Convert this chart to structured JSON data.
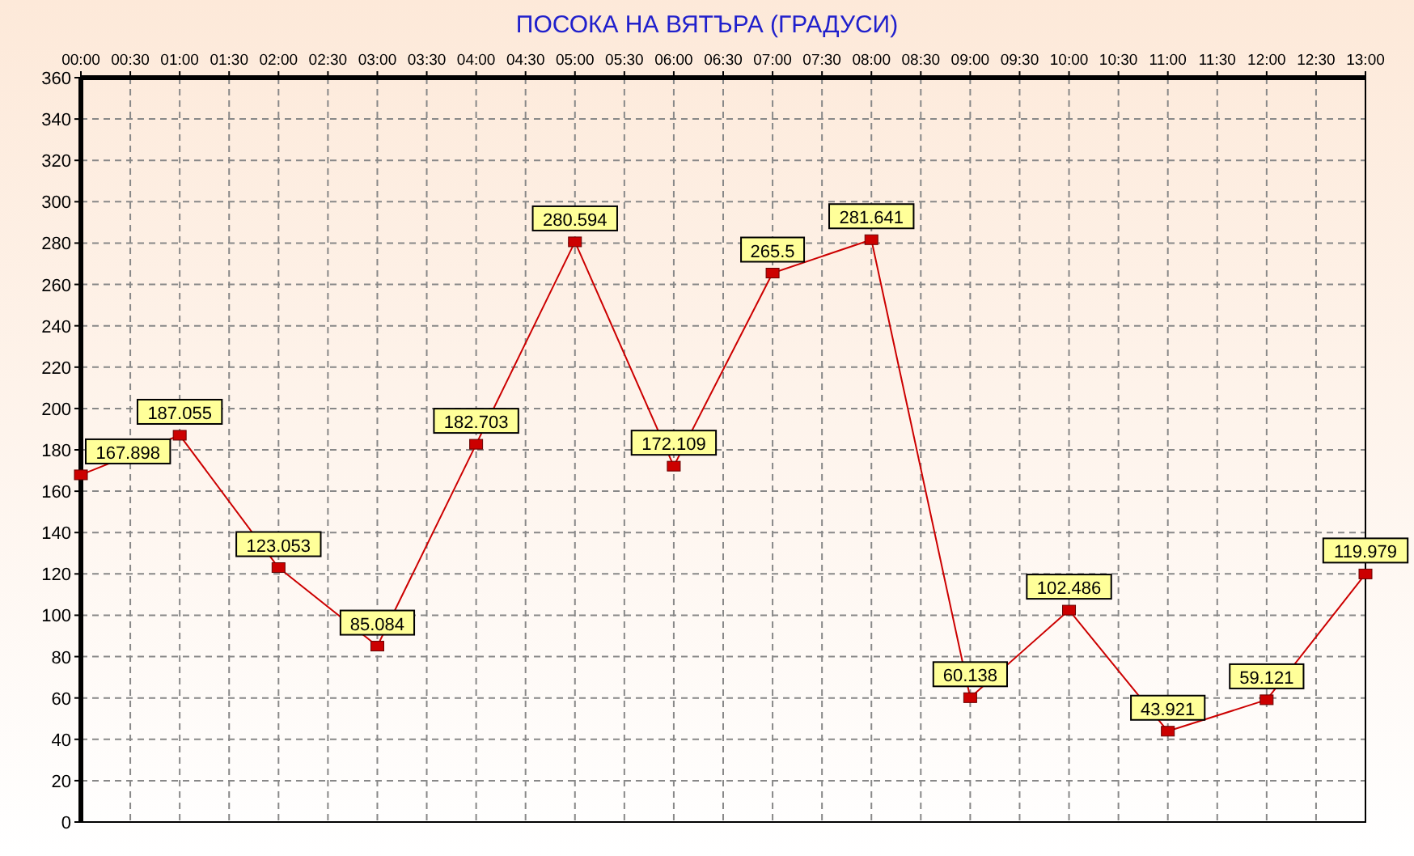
{
  "chart_data": {
    "type": "line",
    "title": "ПОСОКА НА ВЯТЪРА    (ГРАДУСИ)",
    "x": [
      0,
      1,
      2,
      3,
      4,
      5,
      6,
      7,
      8,
      9,
      10,
      11,
      12,
      13
    ],
    "series": [
      {
        "color": "#cc0000",
        "values": [
          167.898,
          187.055,
          123.053,
          85.084,
          182.703,
          280.594,
          172.109,
          265.5,
          281.641,
          60.138,
          102.486,
          43.921,
          59.121,
          119.979
        ]
      }
    ],
    "xlim": [
      0,
      13
    ],
    "xticks": [
      {
        "value": 0,
        "label": "00:00"
      },
      {
        "value": 0.5,
        "label": "00:30"
      },
      {
        "value": 1,
        "label": "01:00"
      },
      {
        "value": 1.5,
        "label": "01:30"
      },
      {
        "value": 2,
        "label": "02:00"
      },
      {
        "value": 2.5,
        "label": "02:30"
      },
      {
        "value": 3,
        "label": "03:00"
      },
      {
        "value": 3.5,
        "label": "03:30"
      },
      {
        "value": 4,
        "label": "04:00"
      },
      {
        "value": 4.5,
        "label": "04:30"
      },
      {
        "value": 5,
        "label": "05:00"
      },
      {
        "value": 5.5,
        "label": "05:30"
      },
      {
        "value": 6,
        "label": "06:00"
      },
      {
        "value": 6.5,
        "label": "06:30"
      },
      {
        "value": 7,
        "label": "07:00"
      },
      {
        "value": 7.5,
        "label": "07:30"
      },
      {
        "value": 8,
        "label": "08:00"
      },
      {
        "value": 8.5,
        "label": "08:30"
      },
      {
        "value": 9,
        "label": "09:00"
      },
      {
        "value": 9.5,
        "label": "09:30"
      },
      {
        "value": 10,
        "label": "10:00"
      },
      {
        "value": 10.5,
        "label": "10:30"
      },
      {
        "value": 11,
        "label": "11:00"
      },
      {
        "value": 11.5,
        "label": "11:30"
      },
      {
        "value": 12,
        "label": "12:00"
      },
      {
        "value": 12.5,
        "label": "12:30"
      },
      {
        "value": 13,
        "label": "13:00"
      }
    ],
    "ylim": [
      0,
      360
    ],
    "yticks": [
      0,
      20,
      40,
      60,
      80,
      100,
      120,
      140,
      160,
      180,
      200,
      220,
      240,
      260,
      280,
      300,
      320,
      340,
      360
    ],
    "grid": true,
    "marker": "square",
    "line_style": "solid",
    "data_labels": true
  }
}
